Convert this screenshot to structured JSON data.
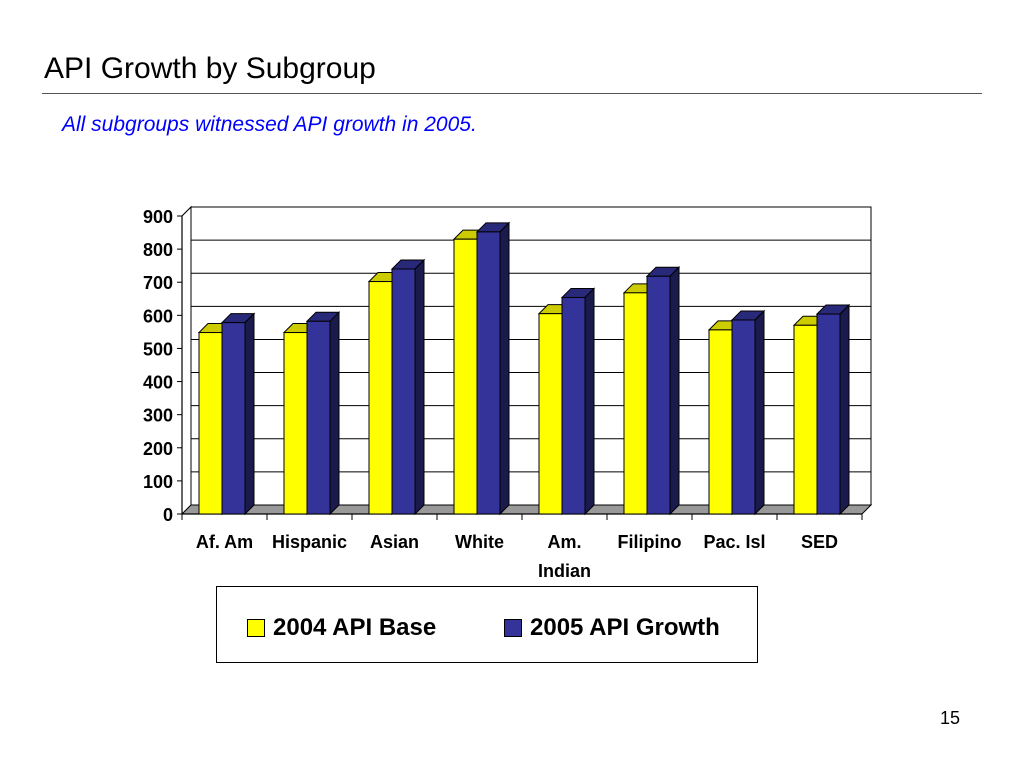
{
  "slide": {
    "title": "API Growth by Subgroup",
    "subtitle": "All subgroups witnessed API growth in 2005.",
    "page_number": "15"
  },
  "colors": {
    "series_2004": "#ffff00",
    "series_2005": "#333399",
    "subtitle": "#0000ff"
  },
  "chart_data": {
    "type": "bar",
    "title": "",
    "xlabel": "",
    "ylabel": "",
    "ylim": [
      0,
      900
    ],
    "yticks": [
      "0",
      "100",
      "200",
      "300",
      "400",
      "500",
      "600",
      "700",
      "800",
      "900"
    ],
    "grid": true,
    "legend_position": "bottom",
    "categories": [
      [
        "Af. Am"
      ],
      [
        "Hispanic"
      ],
      [
        "Asian"
      ],
      [
        "White"
      ],
      [
        "Am.",
        "Indian"
      ],
      [
        "Filipino"
      ],
      [
        "Pac. Isl"
      ],
      [
        "SED"
      ]
    ],
    "series": [
      {
        "name": "2004 API Base",
        "values": [
          548,
          548,
          702,
          830,
          605,
          668,
          556,
          570
        ]
      },
      {
        "name": "2005 API Growth",
        "values": [
          578,
          582,
          740,
          852,
          654,
          718,
          586,
          604
        ]
      }
    ]
  }
}
